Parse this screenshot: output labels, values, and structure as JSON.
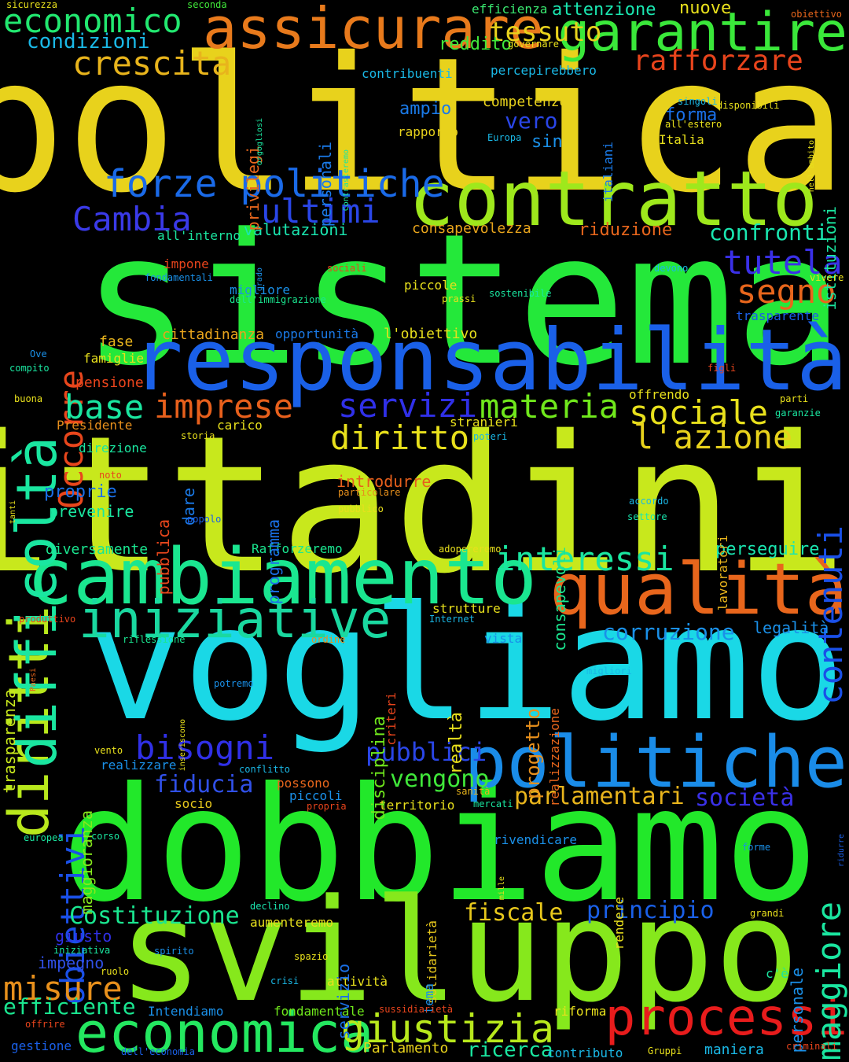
{
  "words": [
    {
      "text": "politica",
      "color": "#e8d21c"
    },
    {
      "text": "sistema",
      "color": "#24e83a"
    },
    {
      "text": "cittadini",
      "color": "#c8e81c"
    },
    {
      "text": "vogliamo",
      "color": "#1ad8e6"
    },
    {
      "text": "dobbiamo",
      "color": "#22e82a"
    },
    {
      "text": "sviluppo",
      "color": "#86e81c"
    },
    {
      "text": "responsabilità",
      "color": "#1a60e8"
    },
    {
      "text": "contratto",
      "color": "#9ee81c"
    },
    {
      "text": "cambiamento",
      "color": "#1ae690"
    },
    {
      "text": "qualità",
      "color": "#e8661c"
    },
    {
      "text": "politiche",
      "color": "#1a8ce8"
    },
    {
      "text": "processi",
      "color": "#e81c1c"
    },
    {
      "text": "economica",
      "color": "#24e860"
    },
    {
      "text": "garantire",
      "color": "#3ae83a"
    },
    {
      "text": "assicurare",
      "color": "#e87a1c"
    },
    {
      "text": "diritti",
      "color": "#b8e81c"
    },
    {
      "text": "difficoltà",
      "color": "#1ae6a0"
    },
    {
      "text": "iniziative",
      "color": "#1ad8a0"
    },
    {
      "text": "giustizia",
      "color": "#b8e81c"
    },
    {
      "text": "forze politiche",
      "color": "#1a6ae8"
    },
    {
      "text": "economico",
      "color": "#22e870"
    },
    {
      "text": "crescita",
      "color": "#e8b41c"
    },
    {
      "text": "rafforzare",
      "color": "#e8441c"
    },
    {
      "text": "tessuto",
      "color": "#e8d21c"
    },
    {
      "text": "Cambia",
      "color": "#3a3ae8"
    },
    {
      "text": "ultimi",
      "color": "#2a46e8"
    },
    {
      "text": "tutela",
      "color": "#3a30e8"
    },
    {
      "text": "segno",
      "color": "#e8661c"
    },
    {
      "text": "confronti",
      "color": "#1ae6b0"
    },
    {
      "text": "Occorre",
      "color": "#e8461c"
    },
    {
      "text": "imprese",
      "color": "#e8601c"
    },
    {
      "text": "servizi",
      "color": "#3030e8"
    },
    {
      "text": "materia",
      "color": "#70e81c"
    },
    {
      "text": "sociale",
      "color": "#e8e01c"
    },
    {
      "text": "base",
      "color": "#1ae6a0"
    },
    {
      "text": "diritto",
      "color": "#e8e01c"
    },
    {
      "text": "l'azione",
      "color": "#e8d21c"
    },
    {
      "text": "contenuti",
      "color": "#1a50e8"
    },
    {
      "text": "interessi",
      "color": "#1ae6a0"
    },
    {
      "text": "bisogni",
      "color": "#3030e8"
    },
    {
      "text": "obiettivi",
      "color": "#1a50e8"
    },
    {
      "text": "maggiore",
      "color": "#1ae6a0"
    },
    {
      "text": "corruzione",
      "color": "#1a90e8"
    },
    {
      "text": "misure",
      "color": "#e8901c"
    },
    {
      "text": "Costituzione",
      "color": "#1ae690"
    },
    {
      "text": "fiscale",
      "color": "#e8c81c"
    },
    {
      "text": "principio",
      "color": "#1a60e8"
    },
    {
      "text": "pubblici",
      "color": "#2a46e8"
    },
    {
      "text": "vengono",
      "color": "#40e83a"
    },
    {
      "text": "parlamentari",
      "color": "#e8b41c"
    },
    {
      "text": "società",
      "color": "#3a30e8"
    },
    {
      "text": "fiducia",
      "color": "#3050e8"
    },
    {
      "text": "efficiente",
      "color": "#1ae690"
    },
    {
      "text": "ricerca",
      "color": "#1ae6a0"
    },
    {
      "text": "condizioni",
      "color": "#1ab8e6"
    },
    {
      "text": "reddito",
      "color": "#40e83a"
    },
    {
      "text": "ampio",
      "color": "#1a7ae8"
    },
    {
      "text": "vero",
      "color": "#2a46e8"
    },
    {
      "text": "sin",
      "color": "#1a90e8"
    },
    {
      "text": "forma",
      "color": "#1a70e8"
    },
    {
      "text": "competenze",
      "color": "#e8d21c"
    },
    {
      "text": "rapporto",
      "color": "#e8d21c"
    },
    {
      "text": "contribuenti",
      "color": "#1ab8e6"
    },
    {
      "text": "percepirebbero",
      "color": "#1ab8e6"
    },
    {
      "text": "efficienza",
      "color": "#3ae870"
    },
    {
      "text": "attenzione",
      "color": "#1ae6b0"
    },
    {
      "text": "nuove",
      "color": "#e8e01c"
    },
    {
      "text": "valutazioni",
      "color": "#1ae6b0"
    },
    {
      "text": "consapevolezza",
      "color": "#e8a41c"
    },
    {
      "text": "riduzione",
      "color": "#e8661c"
    },
    {
      "text": "migliore",
      "color": "#1a90e8"
    },
    {
      "text": "dell'immigrazione",
      "color": "#1ae690"
    },
    {
      "text": "piccole",
      "color": "#e8e01c"
    },
    {
      "text": "cittadinanza",
      "color": "#e8a41c"
    },
    {
      "text": "opportunità",
      "color": "#1a7ae8"
    },
    {
      "text": "l'obiettivo",
      "color": "#e8e01c"
    },
    {
      "text": "fase",
      "color": "#e8b41c"
    },
    {
      "text": "famiglie",
      "color": "#e8e01c"
    },
    {
      "text": "pensione",
      "color": "#e8441c"
    },
    {
      "text": "trasparente",
      "color": "#1a60e8"
    },
    {
      "text": "offrendo",
      "color": "#e8e01c"
    },
    {
      "text": "introdurre",
      "color": "#e8601c"
    },
    {
      "text": "proprie",
      "color": "#1a70e8"
    },
    {
      "text": "prevenire",
      "color": "#1ae6a0"
    },
    {
      "text": "direzione",
      "color": "#1ae6a0"
    },
    {
      "text": "carico",
      "color": "#e8e01c"
    },
    {
      "text": "stranieri",
      "color": "#e8e01c"
    },
    {
      "text": "perseguire",
      "color": "#1ae6b0"
    },
    {
      "text": "diversamente",
      "color": "#1ae690"
    },
    {
      "text": "Rafforzeremo",
      "color": "#1ae690"
    },
    {
      "text": "strutture",
      "color": "#e8e01c"
    },
    {
      "text": "legalità",
      "color": "#1a90e8"
    },
    {
      "text": "Intendiamo",
      "color": "#1a90e8"
    },
    {
      "text": "fondamentale",
      "color": "#70e81c"
    },
    {
      "text": "attività",
      "color": "#e8e01c"
    },
    {
      "text": "impegno",
      "color": "#3050e8"
    },
    {
      "text": "giusto",
      "color": "#3030e8"
    },
    {
      "text": "gestione",
      "color": "#1a60e8"
    },
    {
      "text": "Parlamento",
      "color": "#e8d21c"
    },
    {
      "text": "contributo",
      "color": "#1ab8e6"
    },
    {
      "text": "maniera",
      "color": "#1ab8e6"
    },
    {
      "text": "riforma",
      "color": "#e8e01c"
    },
    {
      "text": "aumenteremo",
      "color": "#e8e01c"
    },
    {
      "text": "territorio",
      "color": "#e8e01c"
    },
    {
      "text": "rivendicare",
      "color": "#1a90e8"
    },
    {
      "text": "piccoli",
      "color": "#1a90e8"
    },
    {
      "text": "possono",
      "color": "#e8661c"
    },
    {
      "text": "socio",
      "color": "#e8c81c"
    },
    {
      "text": "realizzare",
      "color": "#1a90e8"
    },
    {
      "text": "personale",
      "color": "#1a90e8"
    },
    {
      "text": "c'è",
      "color": "#1ae6a0"
    },
    {
      "text": "privilegi",
      "color": "#e8661c"
    },
    {
      "text": "personali",
      "color": "#1a7ae8"
    },
    {
      "text": "italiani",
      "color": "#1a7ae8"
    },
    {
      "text": "istituzioni",
      "color": "#1ae6a0"
    },
    {
      "text": "pubblica",
      "color": "#e8461c"
    },
    {
      "text": "dare",
      "color": "#1a7ae8"
    },
    {
      "text": "programma",
      "color": "#1a70e8"
    },
    {
      "text": "consapevoli",
      "color": "#1ae690"
    },
    {
      "text": "realtà",
      "color": "#e8e01c"
    },
    {
      "text": "progetto",
      "color": "#e8901c"
    },
    {
      "text": "disciplina",
      "color": "#70e81c"
    },
    {
      "text": "criteri",
      "color": "#e8441c"
    },
    {
      "text": "solidarietà",
      "color": "#e8c81c"
    },
    {
      "text": "servizio",
      "color": "#1a70e8"
    },
    {
      "text": "tema",
      "color": "#1a90e8"
    },
    {
      "text": "rendere",
      "color": "#e8e01c"
    },
    {
      "text": "trasparenza",
      "color": "#c8e81c"
    },
    {
      "text": "maggioranza",
      "color": "#86e81c"
    },
    {
      "text": "lavoratori",
      "color": "#e8b41c"
    },
    {
      "text": "realizzazione",
      "color": "#e8661c"
    },
    {
      "text": "governare",
      "color": "#e8e01c"
    },
    {
      "text": "seconda",
      "color": "#40e83a"
    },
    {
      "text": "obiettivo",
      "color": "#e8661c"
    },
    {
      "text": "sicurezza",
      "color": "#e8e01c"
    },
    {
      "text": "orgogliosi",
      "color": "#1ae6a0"
    },
    {
      "text": "Contrasteremo",
      "color": "#1ae6a0"
    },
    {
      "text": "Europa",
      "color": "#1ab8e6"
    },
    {
      "text": "singoli",
      "color": "#1ab8e6"
    },
    {
      "text": "disponibili",
      "color": "#e8e01c"
    },
    {
      "text": "all'estero",
      "color": "#e8e01c"
    },
    {
      "text": "Italia",
      "color": "#e8e01c"
    },
    {
      "text": "nell'ambito",
      "color": "#e8e01c"
    },
    {
      "text": "all'interno",
      "color": "#1ae6a0"
    },
    {
      "text": "grado",
      "color": "#1a90e8"
    },
    {
      "text": "impone",
      "color": "#e8441c"
    },
    {
      "text": "fondamentali",
      "color": "#1a90e8"
    },
    {
      "text": "sociali",
      "color": "#e8441c"
    },
    {
      "text": "prassi",
      "color": "#e8e01c"
    },
    {
      "text": "devono",
      "color": "#1ab8e6"
    },
    {
      "text": "vivere",
      "color": "#e8e01c"
    },
    {
      "text": "sostenibile",
      "color": "#1ae6a0"
    },
    {
      "text": "Ove",
      "color": "#1a90e8"
    },
    {
      "text": "compito",
      "color": "#1ae6a0"
    },
    {
      "text": "figli",
      "color": "#e8441c"
    },
    {
      "text": "buona",
      "color": "#e8e01c"
    },
    {
      "text": "parti",
      "color": "#e8e01c"
    },
    {
      "text": "garanzie",
      "color": "#1ae6a0"
    },
    {
      "text": "Presidente",
      "color": "#e8901c"
    },
    {
      "text": "storia",
      "color": "#e8e01c"
    },
    {
      "text": "poteri",
      "color": "#1ab8e6"
    },
    {
      "text": "tanti",
      "color": "#e8e01c"
    },
    {
      "text": "noto",
      "color": "#e8441c"
    },
    {
      "text": "particolare",
      "color": "#e8901c"
    },
    {
      "text": "accordo",
      "color": "#1ab8e6"
    },
    {
      "text": "pubblico",
      "color": "#e8e01c"
    },
    {
      "text": "popolo",
      "color": "#1a60e8"
    },
    {
      "text": "settore",
      "color": "#1ae6b0"
    },
    {
      "text": "adopereremo",
      "color": "#e8e01c"
    },
    {
      "text": "Internet",
      "color": "#1ab8e6"
    },
    {
      "text": "produttivo",
      "color": "#e8441c"
    },
    {
      "text": "vista",
      "color": "#1a90e8"
    },
    {
      "text": "riflessione",
      "color": "#1ae690"
    },
    {
      "text": "ordine",
      "color": "#e8901c"
    },
    {
      "text": "Paesi",
      "color": "#e8661c"
    },
    {
      "text": "migliori",
      "color": "#1ab8e6"
    },
    {
      "text": "inseriscono",
      "color": "#e8e01c"
    },
    {
      "text": "potremo",
      "color": "#1a90e8"
    },
    {
      "text": "vento",
      "color": "#e8e01c"
    },
    {
      "text": "conflitto",
      "color": "#1ab8e6"
    },
    {
      "text": "sanità",
      "color": "#e8b41c"
    },
    {
      "text": "propria",
      "color": "#e8441c"
    },
    {
      "text": "mercati",
      "color": "#1ae6a0"
    },
    {
      "text": "ridurre",
      "color": "#1a60e8"
    },
    {
      "text": "europea",
      "color": "#1ae6a0"
    },
    {
      "text": "corso",
      "color": "#1ae6a0"
    },
    {
      "text": "mille",
      "color": "#e8e01c"
    },
    {
      "text": "forme",
      "color": "#1a90e8"
    },
    {
      "text": "declino",
      "color": "#1ae6b0"
    },
    {
      "text": "grandi",
      "color": "#e8e01c"
    },
    {
      "text": "iniziativa",
      "color": "#1ae6a0"
    },
    {
      "text": "spirito",
      "color": "#1a90e8"
    },
    {
      "text": "ruolo",
      "color": "#e8e01c"
    },
    {
      "text": "spazio",
      "color": "#e8e01c"
    },
    {
      "text": "crisi",
      "color": "#1ab8e6"
    },
    {
      "text": "offrire",
      "color": "#e8441c"
    },
    {
      "text": "sussidiarietà",
      "color": "#e8441c"
    },
    {
      "text": "dell'economia",
      "color": "#1a60e8"
    },
    {
      "text": "Gruppi",
      "color": "#e8e01c"
    },
    {
      "text": "criminali",
      "color": "#e8441c"
    }
  ]
}
